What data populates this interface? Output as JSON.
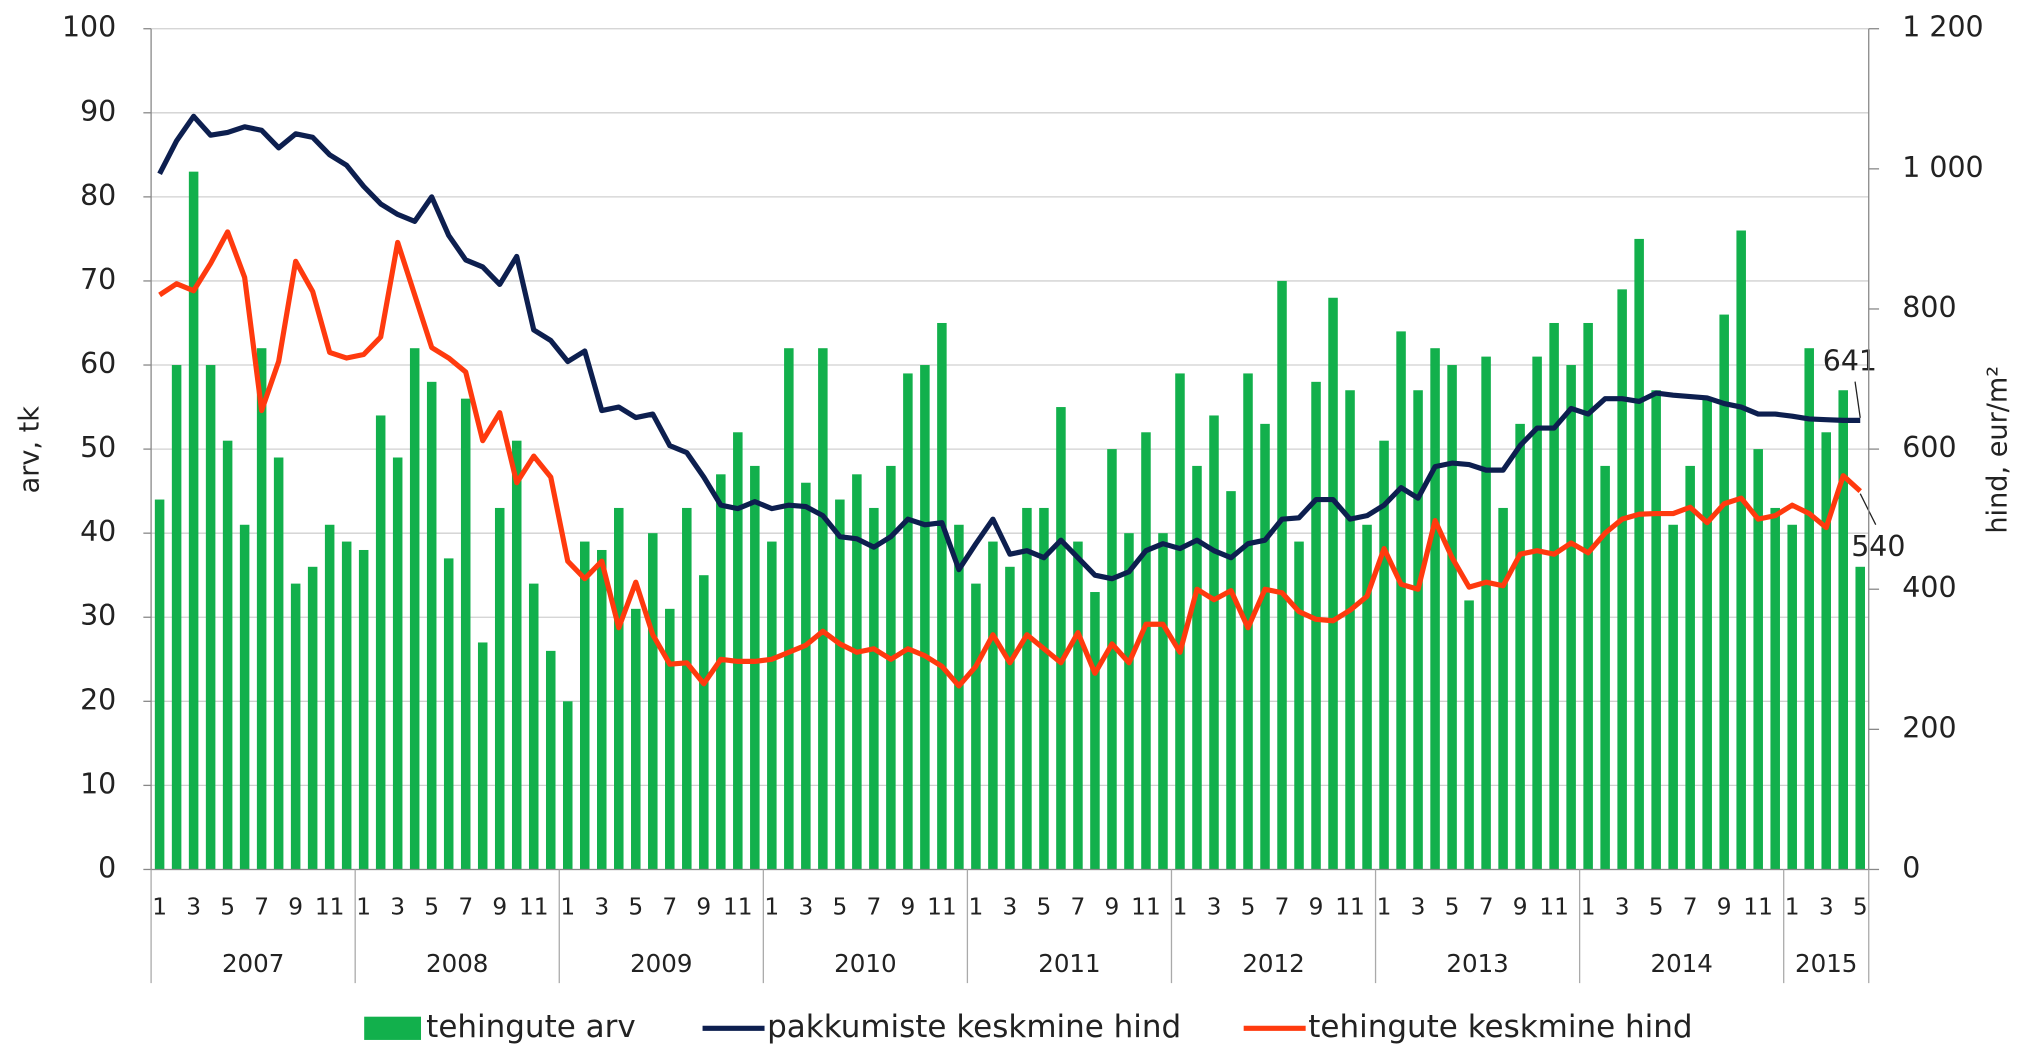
{
  "chart_data": {
    "type": "bar",
    "ylabel": "arv, tk",
    "y2label": "hind, eur/m²",
    "categories": [
      "1",
      null,
      "3",
      null,
      "5",
      null,
      "7",
      null,
      "9",
      null,
      "11",
      null,
      "1",
      null,
      "3",
      null,
      "5",
      null,
      "7",
      null,
      "9",
      null,
      "11",
      null,
      "1",
      null,
      "3",
      null,
      "5",
      null,
      "7",
      null,
      "9",
      null,
      "11",
      null,
      "1",
      null,
      "3",
      null,
      "5",
      null,
      "7",
      null,
      "9",
      null,
      "11",
      null,
      "1",
      null,
      "3",
      null,
      "5",
      null,
      "7",
      null,
      "9",
      null,
      "11",
      null,
      "1",
      null,
      "3",
      null,
      "5",
      null,
      "7",
      null,
      "9",
      null,
      "11",
      null,
      "1",
      null,
      "3",
      null,
      "5",
      null,
      "7",
      null,
      "9",
      null,
      "11",
      null,
      "1",
      null,
      "3",
      null,
      "5",
      null,
      "7",
      null,
      "9",
      null,
      "11",
      null,
      "1",
      null,
      "3",
      null,
      "5"
    ],
    "years": [
      "2007",
      "2008",
      "2009",
      "2010",
      "2011",
      "2012",
      "2013",
      "2014",
      "2015"
    ],
    "ylim": [
      0,
      100
    ],
    "yticks": [
      0,
      10,
      20,
      30,
      40,
      50,
      60,
      70,
      80,
      90,
      100
    ],
    "y2lim": [
      0,
      1200
    ],
    "y2ticks": [
      0,
      200,
      400,
      600,
      800,
      {
        "value": 1000,
        "label": "1 000"
      },
      {
        "value": 1200,
        "label": "1 200"
      }
    ],
    "grid": true,
    "legend": "bottom",
    "series": [
      {
        "name": "tehingute arv",
        "type": "bar",
        "color": "#12b04c",
        "values": [
          44,
          60,
          83,
          60,
          51,
          41,
          62,
          49,
          34,
          36,
          41,
          39,
          38,
          54,
          49,
          62,
          58,
          37,
          56,
          27,
          43,
          51,
          34,
          26,
          20,
          39,
          38,
          43,
          31,
          40,
          31,
          43,
          35,
          47,
          52,
          48,
          39,
          62,
          46,
          62,
          44,
          47,
          43,
          48,
          59,
          60,
          65,
          41,
          34,
          39,
          36,
          43,
          43,
          55,
          39,
          33,
          50,
          40,
          52,
          40,
          59,
          48,
          54,
          45,
          59,
          53,
          70,
          39,
          58,
          68,
          57,
          41,
          51,
          64,
          57,
          62,
          60,
          32,
          61,
          43,
          53,
          61,
          65,
          60,
          65,
          48,
          69,
          75,
          57,
          41,
          48,
          56,
          66,
          76,
          50,
          43,
          41,
          62,
          52,
          57,
          36
        ]
      },
      {
        "name": "pakkumiste keskmine hind",
        "type": "line",
        "axis": "y2",
        "color": "#0d1f4f",
        "values": [
          993,
          1040,
          1075,
          1048,
          1052,
          1060,
          1055,
          1030,
          1050,
          1045,
          1020,
          1005,
          975,
          950,
          935,
          925,
          960,
          905,
          870,
          860,
          835,
          875,
          770,
          755,
          725,
          740,
          655,
          660,
          645,
          650,
          605,
          595,
          560,
          520,
          515,
          525,
          515,
          520,
          518,
          505,
          475,
          472,
          460,
          475,
          500,
          492,
          495,
          428,
          465,
          500,
          450,
          455,
          445,
          470,
          445,
          420,
          415,
          425,
          455,
          465,
          458,
          470,
          455,
          445,
          465,
          470,
          500,
          502,
          528,
          528,
          500,
          505,
          520,
          545,
          530,
          575,
          580,
          578,
          570,
          570,
          605,
          630,
          630,
          658,
          650,
          672,
          672,
          668,
          680,
          677,
          675,
          673,
          665,
          660,
          650,
          650,
          647,
          643,
          642,
          641,
          641
        ],
        "value_labels": [
          null,
          null,
          null,
          null,
          null,
          null,
          null,
          null,
          null,
          null,
          null,
          null,
          null,
          null,
          null,
          null,
          null,
          null,
          null,
          null,
          null,
          null,
          null,
          null,
          null,
          null,
          null,
          null,
          null,
          null,
          null,
          null,
          null,
          null,
          null,
          null,
          null,
          null,
          null,
          null,
          null,
          null,
          null,
          null,
          null,
          null,
          null,
          null,
          null,
          null,
          null,
          null,
          null,
          null,
          null,
          null,
          null,
          null,
          null,
          null,
          null,
          null,
          null,
          null,
          null,
          null,
          null,
          null,
          null,
          null,
          null,
          null,
          null,
          null,
          null,
          null,
          null,
          null,
          null,
          null,
          null,
          null,
          null,
          null,
          null,
          null,
          null,
          null,
          null,
          null,
          null,
          null,
          null,
          null,
          null,
          null,
          null,
          null,
          null,
          null,
          "641"
        ]
      },
      {
        "name": "tehingute keskmine hind",
        "type": "line",
        "axis": "y2",
        "color": "#ff3a0e",
        "values": [
          820,
          836,
          826,
          865,
          910,
          845,
          655,
          725,
          868,
          825,
          738,
          730,
          735,
          760,
          895,
          820,
          745,
          730,
          710,
          612,
          652,
          552,
          590,
          560,
          440,
          415,
          440,
          345,
          410,
          335,
          293,
          295,
          265,
          300,
          297,
          297,
          300,
          310,
          320,
          340,
          322,
          310,
          315,
          300,
          315,
          305,
          290,
          262,
          290,
          335,
          295,
          335,
          315,
          295,
          338,
          280,
          322,
          295,
          350,
          350,
          310,
          400,
          385,
          398,
          345,
          400,
          395,
          368,
          357,
          355,
          370,
          390,
          458,
          407,
          400,
          498,
          445,
          403,
          410,
          405,
          450,
          455,
          450,
          466,
          452,
          480,
          500,
          507,
          508,
          508,
          517,
          495,
          522,
          530,
          500,
          505,
          520,
          508,
          488,
          562,
          540
        ],
        "value_labels": [
          null,
          null,
          null,
          null,
          null,
          null,
          null,
          null,
          null,
          null,
          null,
          null,
          null,
          null,
          null,
          null,
          null,
          null,
          null,
          null,
          null,
          null,
          null,
          null,
          null,
          null,
          null,
          null,
          null,
          null,
          null,
          null,
          null,
          null,
          null,
          null,
          null,
          null,
          null,
          null,
          null,
          null,
          null,
          null,
          null,
          null,
          null,
          null,
          null,
          null,
          null,
          null,
          null,
          null,
          null,
          null,
          null,
          null,
          null,
          null,
          null,
          null,
          null,
          null,
          null,
          null,
          null,
          null,
          null,
          null,
          null,
          null,
          null,
          null,
          null,
          null,
          null,
          null,
          null,
          null,
          null,
          null,
          null,
          null,
          null,
          null,
          null,
          null,
          null,
          null,
          null,
          null,
          null,
          null,
          null,
          null,
          null,
          null,
          null,
          null,
          "540"
        ]
      }
    ]
  }
}
